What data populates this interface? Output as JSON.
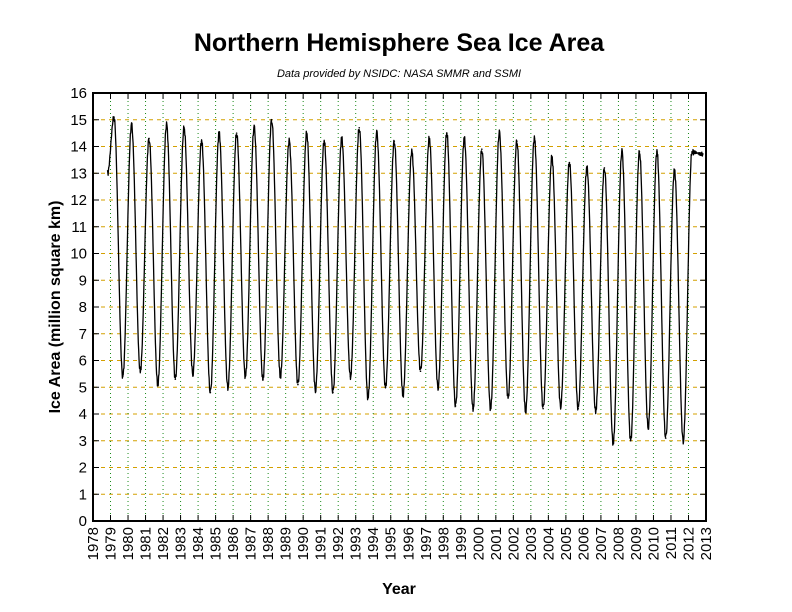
{
  "chart_data": {
    "type": "line",
    "title": "Northern Hemisphere Sea Ice Area",
    "subtitle": "Data provided by NSIDC: NASA SMMR and SSMI",
    "xlabel": "Year",
    "ylabel": "Ice Area (million square km)",
    "xlim": [
      1978,
      2013
    ],
    "ylim": [
      0,
      16
    ],
    "x_ticks": [
      "1978",
      "1979",
      "1980",
      "1981",
      "1982",
      "1983",
      "1984",
      "1985",
      "1986",
      "1987",
      "1988",
      "1989",
      "1990",
      "1991",
      "1992",
      "1993",
      "1994",
      "1995",
      "1996",
      "1997",
      "1998",
      "1999",
      "2000",
      "2001",
      "2002",
      "2003",
      "2004",
      "2005",
      "2006",
      "2007",
      "2008",
      "2009",
      "2010",
      "2011",
      "2012",
      "2013"
    ],
    "y_ticks": [
      "0",
      "1",
      "2",
      "3",
      "4",
      "5",
      "6",
      "7",
      "8",
      "9",
      "10",
      "11",
      "12",
      "13",
      "14",
      "15",
      "16"
    ],
    "grid": true,
    "legend": "none",
    "colors": {
      "line": "#000000",
      "grid_x": "#1a8a1a",
      "grid_y": "#d4a000",
      "frame": "#000000"
    },
    "series": [
      {
        "start_value": 13.0,
        "start_year": 1978.83,
        "end_value": 13.7,
        "end_year": 2012.85,
        "annual_max": [
          {
            "year": 1979.2,
            "value": 15.1
          },
          {
            "year": 1980.2,
            "value": 14.8
          },
          {
            "year": 1981.2,
            "value": 14.3
          },
          {
            "year": 1982.2,
            "value": 14.8
          },
          {
            "year": 1983.2,
            "value": 14.7
          },
          {
            "year": 1984.2,
            "value": 14.2
          },
          {
            "year": 1985.2,
            "value": 14.5
          },
          {
            "year": 1986.2,
            "value": 14.5
          },
          {
            "year": 1987.2,
            "value": 14.7
          },
          {
            "year": 1988.2,
            "value": 15.0
          },
          {
            "year": 1989.2,
            "value": 14.2
          },
          {
            "year": 1990.2,
            "value": 14.5
          },
          {
            "year": 1991.2,
            "value": 14.2
          },
          {
            "year": 1992.2,
            "value": 14.3
          },
          {
            "year": 1993.2,
            "value": 14.7
          },
          {
            "year": 1994.2,
            "value": 14.5
          },
          {
            "year": 1995.2,
            "value": 14.2
          },
          {
            "year": 1996.2,
            "value": 13.8
          },
          {
            "year": 1997.2,
            "value": 14.3
          },
          {
            "year": 1998.2,
            "value": 14.5
          },
          {
            "year": 1999.2,
            "value": 14.3
          },
          {
            "year": 2000.2,
            "value": 13.9
          },
          {
            "year": 2001.2,
            "value": 14.5
          },
          {
            "year": 2002.2,
            "value": 14.2
          },
          {
            "year": 2003.2,
            "value": 14.3
          },
          {
            "year": 2004.2,
            "value": 13.6
          },
          {
            "year": 2005.2,
            "value": 13.4
          },
          {
            "year": 2006.2,
            "value": 13.2
          },
          {
            "year": 2007.2,
            "value": 13.2
          },
          {
            "year": 2008.2,
            "value": 13.8
          },
          {
            "year": 2009.2,
            "value": 13.8
          },
          {
            "year": 2010.2,
            "value": 13.8
          },
          {
            "year": 2011.2,
            "value": 13.1
          },
          {
            "year": 2012.2,
            "value": 13.8
          }
        ],
        "annual_min": [
          {
            "year": 1979.7,
            "value": 5.4
          },
          {
            "year": 1980.7,
            "value": 5.6
          },
          {
            "year": 1981.7,
            "value": 5.1
          },
          {
            "year": 1982.7,
            "value": 5.3
          },
          {
            "year": 1983.7,
            "value": 5.5
          },
          {
            "year": 1984.7,
            "value": 4.8
          },
          {
            "year": 1985.7,
            "value": 5.0
          },
          {
            "year": 1986.7,
            "value": 5.4
          },
          {
            "year": 1987.7,
            "value": 5.3
          },
          {
            "year": 1988.7,
            "value": 5.4
          },
          {
            "year": 1989.7,
            "value": 5.1
          },
          {
            "year": 1990.7,
            "value": 4.9
          },
          {
            "year": 1991.7,
            "value": 4.8
          },
          {
            "year": 1992.7,
            "value": 5.4
          },
          {
            "year": 1993.7,
            "value": 4.6
          },
          {
            "year": 1994.7,
            "value": 5.0
          },
          {
            "year": 1995.7,
            "value": 4.7
          },
          {
            "year": 1996.7,
            "value": 5.6
          },
          {
            "year": 1997.7,
            "value": 5.0
          },
          {
            "year": 1998.7,
            "value": 4.3
          },
          {
            "year": 1999.7,
            "value": 4.2
          },
          {
            "year": 2000.7,
            "value": 4.2
          },
          {
            "year": 2001.7,
            "value": 4.6
          },
          {
            "year": 2002.7,
            "value": 4.1
          },
          {
            "year": 2003.7,
            "value": 4.2
          },
          {
            "year": 2004.7,
            "value": 4.3
          },
          {
            "year": 2005.7,
            "value": 4.2
          },
          {
            "year": 2006.7,
            "value": 4.1
          },
          {
            "year": 2007.7,
            "value": 2.9
          },
          {
            "year": 2008.7,
            "value": 3.0
          },
          {
            "year": 2009.7,
            "value": 3.5
          },
          {
            "year": 2010.7,
            "value": 3.1
          },
          {
            "year": 2011.7,
            "value": 3.0
          }
        ]
      }
    ]
  }
}
